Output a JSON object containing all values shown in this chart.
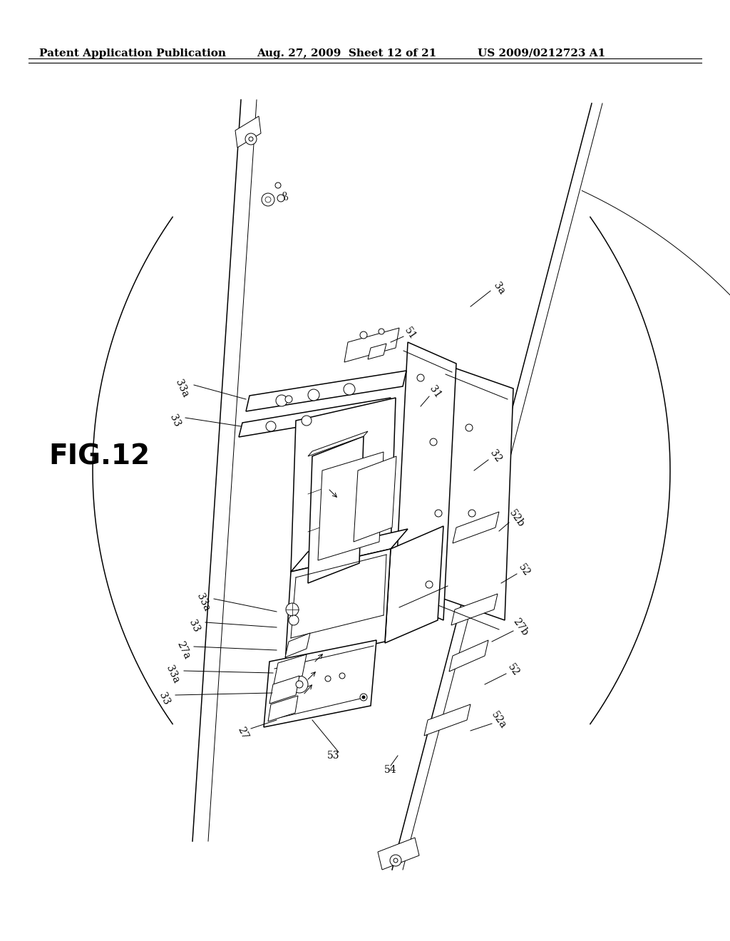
{
  "header_left": "Patent Application Publication",
  "header_mid": "Aug. 27, 2009  Sheet 12 of 21",
  "header_right": "US 2009/0212723 A1",
  "fig_label": "FIG.12",
  "background_color": "#ffffff",
  "line_color": "#000000",
  "text_color": "#000000",
  "header_fontsize": 11,
  "fig_label_fontsize": 28,
  "ref_num_fontsize": 10
}
